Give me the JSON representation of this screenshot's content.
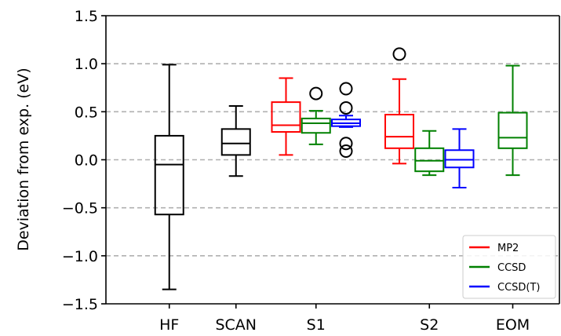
{
  "chart_data": {
    "type": "box",
    "ylabel": "Deviation from exp. (eV)",
    "ylim": [
      -1.5,
      1.5
    ],
    "yticks": [
      "−1.5",
      "−1.0",
      "−0.5",
      "0.0",
      "0.5",
      "1.0",
      "1.5"
    ],
    "ytick_values": [
      -1.5,
      -1.0,
      -0.5,
      0.0,
      0.5,
      1.0,
      1.5
    ],
    "grid": {
      "y": true,
      "style": "dashed",
      "values": [
        -1.0,
        -0.5,
        0.0,
        0.5,
        1.0
      ]
    },
    "categories": [
      "HF",
      "SCAN",
      "S1",
      "S2",
      "EOM"
    ],
    "legend": {
      "placement": "lower-right",
      "entries": [
        {
          "name": "MP2",
          "color": "#ff0000"
        },
        {
          "name": "CCSD",
          "color": "#008000"
        },
        {
          "name": "CCSD(T)",
          "color": "#0000ff"
        }
      ]
    },
    "boxes": [
      {
        "category": "HF",
        "x": 1.0,
        "color": "#000000",
        "whisker_low": -1.35,
        "q1": -0.57,
        "median": -0.05,
        "q3": 0.25,
        "whisker_high": 0.99,
        "outliers": []
      },
      {
        "category": "SCAN",
        "x": 2.0,
        "color": "#000000",
        "whisker_low": -0.17,
        "q1": 0.05,
        "median": 0.17,
        "q3": 0.32,
        "whisker_high": 0.56,
        "outliers": []
      },
      {
        "category": "S1",
        "series": "MP2",
        "x": 2.75,
        "color": "#ff0000",
        "whisker_low": 0.05,
        "q1": 0.29,
        "median": 0.36,
        "q3": 0.6,
        "whisker_high": 0.85,
        "outliers": []
      },
      {
        "category": "S1",
        "series": "CCSD",
        "x": 3.2,
        "color": "#008000",
        "whisker_low": 0.16,
        "q1": 0.28,
        "median": 0.38,
        "q3": 0.43,
        "whisker_high": 0.51,
        "outliers": [
          0.69
        ]
      },
      {
        "category": "S1",
        "series": "CCSD(T)",
        "x": 3.65,
        "color": "#0000ff",
        "whisker_low": 0.34,
        "q1": 0.35,
        "median": 0.38,
        "q3": 0.42,
        "whisker_high": 0.46,
        "outliers": [
          0.74,
          0.54,
          0.17,
          0.09
        ]
      },
      {
        "category": "S2",
        "series": "MP2",
        "x": 4.45,
        "color": "#ff0000",
        "whisker_low": -0.04,
        "q1": 0.12,
        "median": 0.24,
        "q3": 0.47,
        "whisker_high": 0.84,
        "outliers": [
          1.1
        ]
      },
      {
        "category": "S2",
        "series": "CCSD",
        "x": 4.9,
        "color": "#008000",
        "whisker_low": -0.16,
        "q1": -0.12,
        "median": -0.01,
        "q3": 0.12,
        "whisker_high": 0.3,
        "outliers": []
      },
      {
        "category": "S2",
        "series": "CCSD(T)",
        "x": 5.35,
        "color": "#0000ff",
        "whisker_low": -0.29,
        "q1": -0.08,
        "median": 0.0,
        "q3": 0.1,
        "whisker_high": 0.32,
        "outliers": []
      },
      {
        "category": "EOM",
        "x": 6.15,
        "color": "#008000",
        "whisker_low": -0.16,
        "q1": 0.12,
        "median": 0.23,
        "q3": 0.49,
        "whisker_high": 0.98,
        "outliers": []
      }
    ],
    "category_tick_x": [
      1.0,
      2.0,
      3.2,
      4.9,
      6.15
    ],
    "xlim": [
      0.05,
      6.85
    ]
  }
}
